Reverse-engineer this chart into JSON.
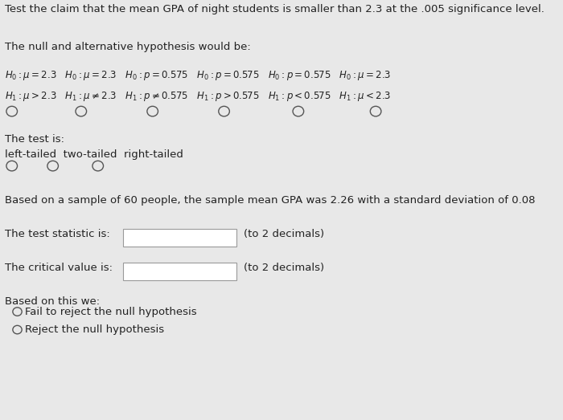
{
  "title": "Test the claim that the mean GPA of night students is smaller than 2.3 at the .005 significance level.",
  "bg_color": "#e8e8e8",
  "text_color": "#333333",
  "section1_header": "The null and alternative hypothesis would be:",
  "hyp_row1": "H₀:μ = 2.3  H₀:μ = 2.3  H₀:p = 0.575  H₀:p = 0.575  H₀:p = 0.575  H₀:μ = 2.3",
  "hyp_row2": "H₁:μ > 2.3  H₁:μ ≠ 2.3  H₁:p ≠ 0.575  H₁:p > 0.575  H₁:p < 0.575  H₁:μ < 2.3",
  "section2_header": "The test is:",
  "test_types": "left-tailed  two-tailed  right-tailed",
  "sample_info": "Based on a sample of 60 people, the sample mean GPA was 2.26 with a standard deviation of 0.08",
  "stat_label": "The test statistic is:",
  "crit_label": "The critical value is:",
  "decimal_note": "(to 2 decimals)",
  "conclusion_header": "Based on this we:",
  "option1": "O Fail to reject the null hypothesis",
  "option2": "O Reject the null hypothesis",
  "box_color": "#c8c8c8",
  "box_border": "#999999"
}
